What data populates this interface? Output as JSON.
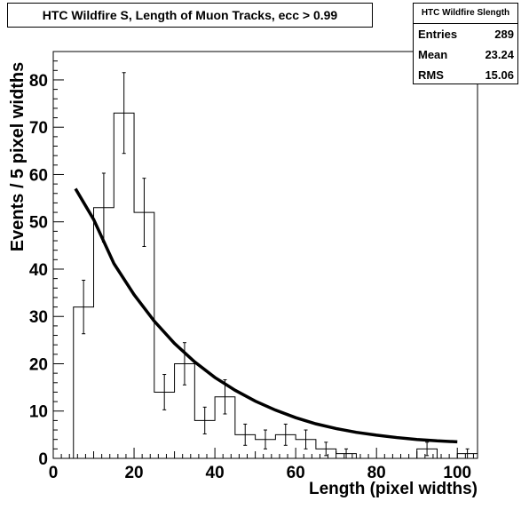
{
  "chart_data": {
    "type": "bar",
    "title": "HTC Wildfire S, Length of Muon Tracks, ecc > 0.99",
    "xlabel": "Length (pixel widths)",
    "ylabel": "Events / 5 pixel widths",
    "xlim": [
      0,
      105
    ],
    "ylim": [
      0,
      86
    ],
    "x_ticks": [
      0,
      20,
      40,
      60,
      80,
      100
    ],
    "y_ticks": [
      0,
      10,
      20,
      30,
      40,
      50,
      60,
      70,
      80
    ],
    "x_tick_labels": [
      "0",
      "20",
      "40",
      "60",
      "80",
      "100"
    ],
    "y_tick_labels": [
      "0",
      "10",
      "20",
      "30",
      "40",
      "50",
      "60",
      "70",
      "80"
    ],
    "bin_edges": [
      5,
      10,
      15,
      20,
      25,
      30,
      35,
      40,
      45,
      50,
      55,
      60,
      65,
      70,
      75,
      80,
      85,
      90,
      95,
      100,
      105
    ],
    "values": [
      32,
      53,
      73,
      52,
      14,
      20,
      8,
      13,
      5,
      4,
      5,
      4,
      2,
      1,
      0,
      0,
      0,
      2,
      0,
      1
    ],
    "errors": [
      5.66,
      7.28,
      8.54,
      7.21,
      3.74,
      4.47,
      2.83,
      3.61,
      2.24,
      2.0,
      2.24,
      2.0,
      1.41,
      1.0,
      0,
      0,
      0,
      1.41,
      0,
      1.0
    ],
    "fit": {
      "x": [
        5.5,
        10,
        15,
        20,
        25,
        30,
        35,
        40,
        45,
        50,
        55,
        60,
        65,
        70,
        75,
        80,
        85,
        90,
        95,
        100
      ],
      "y": [
        57,
        50.5,
        41.2,
        34.6,
        29.0,
        24.3,
        20.4,
        17.1,
        14.4,
        12.1,
        10.2,
        8.6,
        7.3,
        6.3,
        5.5,
        4.9,
        4.4,
        4.0,
        3.7,
        3.5
      ]
    },
    "grid": false,
    "legend": "top-right"
  },
  "stats": {
    "name": "HTC Wildfire Slength",
    "rows": [
      {
        "label": "Entries",
        "value": "289"
      },
      {
        "label": "Mean",
        "value": "23.24"
      },
      {
        "label": "RMS",
        "value": "15.06"
      }
    ]
  }
}
